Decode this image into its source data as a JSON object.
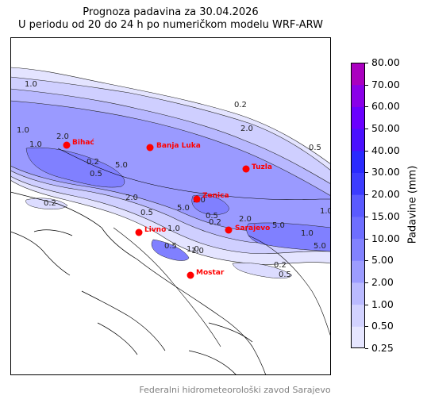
{
  "title": {
    "line1": "Prognoza padavina za 30.04.2026",
    "line2": "U periodu od 20 do 24 h po numeričkom modelu WRF-ARW"
  },
  "colorbar": {
    "label": "Padavine (mm)",
    "ticks": [
      "0.25",
      "0.50",
      "1.00",
      "2.00",
      "5.00",
      "10.00",
      "15.00",
      "20.00",
      "30.00",
      "40.00",
      "50.00",
      "60.00",
      "70.00",
      "80.00"
    ],
    "colors": [
      "#e6e6ff",
      "#d2d2ff",
      "#babaff",
      "#9c9cff",
      "#8282ff",
      "#6e6eff",
      "#5a5aff",
      "#3c3cff",
      "#2a2aff",
      "#4a10ff",
      "#6a00ff",
      "#8a00e8",
      "#aa00c0"
    ]
  },
  "cities": [
    {
      "name": "Bihać"
    },
    {
      "name": "Banja Luka"
    },
    {
      "name": "Tuzla"
    },
    {
      "name": "Zenica"
    },
    {
      "name": "Livno"
    },
    {
      "name": "Sarajevo"
    },
    {
      "name": "Mostar"
    }
  ],
  "contour_labels": [
    "1.0",
    "0.2",
    "2.0",
    "0.5",
    "1.0",
    "2.0",
    "1.0",
    "5.0",
    "0.2",
    "0.5",
    "0.2",
    "2.0",
    "0.5",
    "2.0",
    "1.0",
    "5.0",
    "5.0",
    "1.0",
    "0.5",
    "5.0",
    "1.0",
    "0.5",
    "1.0",
    "0.2",
    "0.5",
    "2.0",
    "0.2",
    "1.0"
  ],
  "footer": "Federalni hidrometeorološki zavod Sarajevo",
  "colors": {
    "city_marker": "#ff0000",
    "footer_text": "#808080"
  }
}
